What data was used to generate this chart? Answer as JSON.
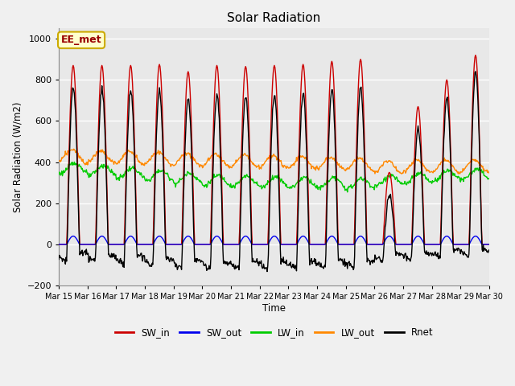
{
  "title": "Solar Radiation",
  "ylabel": "Solar Radiation (W/m2)",
  "xlabel": "Time",
  "annotation": "EE_met",
  "ylim": [
    -200,
    1050
  ],
  "num_days": 15,
  "x_tick_labels": [
    "Mar 15",
    "Mar 16",
    "Mar 17",
    "Mar 18",
    "Mar 19",
    "Mar 20",
    "Mar 21",
    "Mar 22",
    "Mar 23",
    "Mar 24",
    "Mar 25",
    "Mar 26",
    "Mar 27",
    "Mar 28",
    "Mar 29",
    "Mar 30"
  ],
  "legend_entries": [
    "SW_in",
    "SW_out",
    "LW_in",
    "LW_out",
    "Rnet"
  ],
  "legend_colors": [
    "#cc0000",
    "#0000ee",
    "#00cc00",
    "#ff8800",
    "#000000"
  ],
  "figure_bg": "#f0f0f0",
  "plot_bg_color": "#e8e8e8",
  "grid_color": "#ffffff",
  "annotation_fg": "#990000",
  "annotation_bg": "#ffffcc",
  "annotation_edge": "#ccaa00"
}
